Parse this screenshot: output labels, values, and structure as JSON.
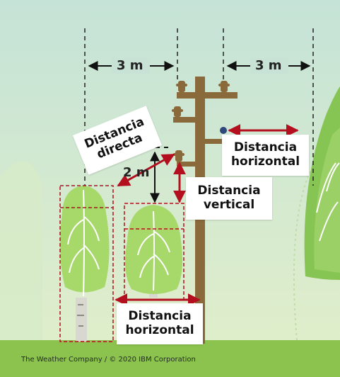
{
  "labels": {
    "spacing_left": "3 m",
    "spacing_right": "3 m",
    "clearance": "2 m",
    "direct_line1": "Distancia",
    "direct_line2": "directa",
    "horizontal_right_line1": "Distancia",
    "horizontal_right_line2": "horizontal",
    "vertical_line1": "Distancia",
    "vertical_line2": "vertical",
    "horizontal_bottom_line1": "Distancia",
    "horizontal_bottom_line2": "horizontal"
  },
  "footer": {
    "credit": "The Weather Company / © 2020 IBM Corporation"
  },
  "colors": {
    "sky_top": "#c8e4d6",
    "sky_bottom": "#ddeccb",
    "ground": "#8cc34f",
    "pole": "#8a6a3a",
    "tree_light": "#a7d86a",
    "tree_dark": "#7bbf4a",
    "accent_red": "#b40f1e",
    "dashed": "#222222"
  }
}
